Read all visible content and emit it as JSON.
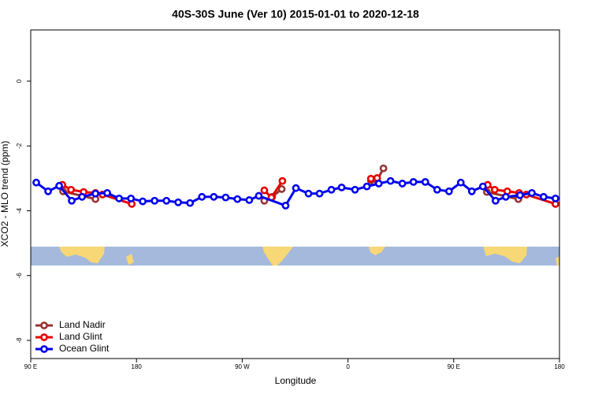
{
  "chart_data": {
    "type": "line",
    "title": "40S-30S June (Ver 10)   2015-01-01 to 2020-12-18",
    "x_label": "Longitude",
    "y_label": "XCO2 - MLO trend (ppm)",
    "xlim": [
      90,
      540
    ],
    "ylim": [
      -8.56,
      1.58
    ],
    "xticks": [
      {
        "value": 90,
        "label": "90 E"
      },
      180,
      {
        "value": 270,
        "label": "90 W"
      },
      {
        "value": 360,
        "label": "0"
      },
      {
        "value": 450,
        "label": "90 E"
      },
      {
        "value": 540,
        "label": "180"
      }
    ],
    "yticks": [
      0,
      -2,
      -4,
      -6,
      -8
    ],
    "legend": "bottom-left",
    "series": [
      {
        "name": "Land Nadir",
        "color": "#993333",
        "x": [
          117.5,
          145.1,
          null,
          288.8,
          295.5,
          303.6,
          null,
          379.5,
          384.8,
          390.2,
          null,
          478.2,
          505.0
        ],
        "values": [
          -3.4,
          -3.64,
          null,
          -3.69,
          -3.57,
          -3.33,
          null,
          -3.06,
          -3.06,
          -2.69,
          null,
          -3.42,
          -3.64
        ]
      },
      {
        "name": "Land Glint",
        "color": "#e60000",
        "x": [
          116.9,
          124.3,
          135.0,
          145.1,
          151.1,
          176.0,
          null,
          288.8,
          294.8,
          304.2,
          null,
          379.5,
          384.8,
          null,
          478.9,
          484.9,
          495.6,
          505.7,
          511.8,
          536.6
        ],
        "values": [
          -3.2,
          -3.35,
          -3.42,
          -3.45,
          -3.5,
          -3.79,
          null,
          -3.37,
          -3.59,
          -3.08,
          null,
          -3.01,
          -2.99,
          null,
          -3.2,
          -3.35,
          -3.4,
          -3.45,
          -3.5,
          -3.79
        ]
      },
      {
        "name": "Ocean Glint",
        "color": "#0000ee",
        "x": [
          94.7,
          104.8,
          114.2,
          124.9,
          133.7,
          145.1,
          155.1,
          165.2,
          175.3,
          185.3,
          195.4,
          205.5,
          215.5,
          225.6,
          235.7,
          245.8,
          255.9,
          265.9,
          276.0,
          284.1,
          306.9,
          315.7,
          326.4,
          335.8,
          345.9,
          354.6,
          366.0,
          376.1,
          386.2,
          396.2,
          406.3,
          415.7,
          425.8,
          435.9,
          446.0,
          456.0,
          465.4,
          474.8,
          485.6,
          494.3,
          506.4,
          516.5,
          526.5,
          536.6
        ],
        "values": [
          -3.13,
          -3.4,
          -3.23,
          -3.69,
          -3.57,
          -3.47,
          -3.45,
          -3.62,
          -3.62,
          -3.71,
          -3.69,
          -3.69,
          -3.74,
          -3.76,
          -3.57,
          -3.57,
          -3.59,
          -3.64,
          -3.67,
          -3.54,
          -3.84,
          -3.3,
          -3.47,
          -3.47,
          -3.35,
          -3.28,
          -3.35,
          -3.25,
          -3.16,
          -3.08,
          -3.16,
          -3.11,
          -3.11,
          -3.35,
          -3.4,
          -3.13,
          -3.4,
          -3.25,
          -3.69,
          -3.57,
          -3.52,
          -3.45,
          -3.57,
          -3.62
        ]
      }
    ]
  }
}
